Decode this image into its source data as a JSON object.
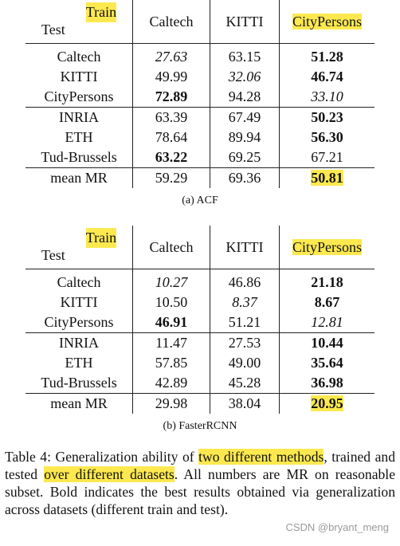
{
  "tables": [
    {
      "caption": "(a) ACF",
      "header": {
        "train": "Train",
        "test": "Test",
        "columns": [
          "Caltech",
          "KITTI",
          "CityPersons"
        ]
      },
      "rows": [
        {
          "name": "Caltech",
          "values": [
            "27.63",
            "63.15",
            "51.28"
          ],
          "style": [
            "i",
            "",
            "b"
          ]
        },
        {
          "name": "KITTI",
          "values": [
            "49.99",
            "32.06",
            "46.74"
          ],
          "style": [
            "",
            "i",
            "b"
          ]
        },
        {
          "name": "CityPersons",
          "values": [
            "72.89",
            "94.28",
            "33.10"
          ],
          "style": [
            "b",
            "",
            "i"
          ]
        },
        {
          "name": "INRIA",
          "values": [
            "63.39",
            "67.49",
            "50.23"
          ],
          "style": [
            "",
            "",
            "b"
          ]
        },
        {
          "name": "ETH",
          "values": [
            "78.64",
            "89.94",
            "56.30"
          ],
          "style": [
            "",
            "",
            "b"
          ]
        },
        {
          "name": "Tud-Brussels",
          "values": [
            "63.22",
            "69.25",
            "67.21"
          ],
          "style": [
            "b",
            "",
            ""
          ]
        },
        {
          "name": "mean MR",
          "values": [
            "59.29",
            "69.36",
            "50.81"
          ],
          "style": [
            "",
            "",
            "b"
          ]
        }
      ]
    },
    {
      "caption": "(b) FasterRCNN",
      "header": {
        "train": "Train",
        "test": "Test",
        "columns": [
          "Caltech",
          "KITTI",
          "CityPersons"
        ]
      },
      "rows": [
        {
          "name": "Caltech",
          "values": [
            "10.27",
            "46.86",
            "21.18"
          ],
          "style": [
            "i",
            "",
            "b"
          ]
        },
        {
          "name": "KITTI",
          "values": [
            "10.50",
            "8.37",
            "8.67"
          ],
          "style": [
            "",
            "i",
            "b"
          ]
        },
        {
          "name": "CityPersons",
          "values": [
            "46.91",
            "51.21",
            "12.81"
          ],
          "style": [
            "b",
            "",
            "i"
          ]
        },
        {
          "name": "INRIA",
          "values": [
            "11.47",
            "27.53",
            "10.44"
          ],
          "style": [
            "",
            "",
            "b"
          ]
        },
        {
          "name": "ETH",
          "values": [
            "57.85",
            "49.00",
            "35.64"
          ],
          "style": [
            "",
            "",
            "b"
          ]
        },
        {
          "name": "Tud-Brussels",
          "values": [
            "42.89",
            "45.28",
            "36.98"
          ],
          "style": [
            "",
            "",
            "b"
          ]
        },
        {
          "name": "mean MR",
          "values": [
            "29.98",
            "38.04",
            "20.95"
          ],
          "style": [
            "",
            "",
            "b"
          ]
        }
      ]
    }
  ],
  "description": {
    "part1": "Table 4: Generalization ability of ",
    "highlight1": "two different methods",
    "part2": ", trained and tested ",
    "highlight2": "over different datasets",
    "part3": ". All numbers are MR on reasonable subset. Bold indicates the best results obtained via generalization across datasets (different train and test)."
  },
  "watermark": "CSDN @bryant_meng",
  "highlight_color": "#fde94f"
}
